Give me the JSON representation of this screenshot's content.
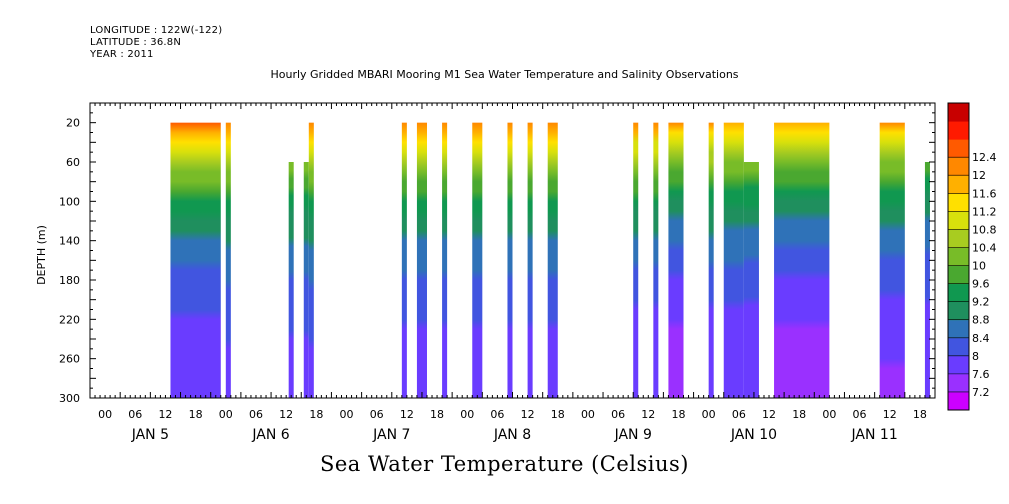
{
  "header": {
    "longitude": "LONGITUDE : 122W(-122)",
    "latitude": "LATITUDE : 36.8N",
    "year": "YEAR : 2011"
  },
  "chart_data": {
    "type": "heatmap",
    "title": "Hourly Gridded MBARI Mooring M1 Sea Water Temperature and Salinity Observations",
    "colorbar_title": "Sea Water Temperature (Celsius)",
    "ylabel": "DEPTH (m)",
    "ylim": [
      300,
      0
    ],
    "y_ticks": [
      20,
      60,
      100,
      140,
      180,
      220,
      260,
      300
    ],
    "x_range_hours": [
      0,
      168
    ],
    "x_hour_ticks": [
      "00",
      "06",
      "12",
      "18"
    ],
    "days": [
      "JAN  5",
      "JAN  6",
      "JAN  7",
      "JAN  8",
      "JAN  9",
      "JAN 10",
      "JAN 11"
    ],
    "colorbar_levels": [
      7.2,
      7.6,
      8,
      8.4,
      8.8,
      9.2,
      9.6,
      10,
      10.4,
      10.8,
      11.2,
      11.6,
      12,
      12.4
    ],
    "colorbar_labels": [
      "7.2",
      "7.6",
      "8",
      "8.4",
      "8.8",
      "9.2",
      "9.6",
      "10",
      "10.4",
      "10.8",
      "11.2",
      "11.6",
      "12",
      "12.4"
    ],
    "colors": [
      "#cc00ff",
      "#9a30ff",
      "#6a3cff",
      "#4155e0",
      "#2f72b8",
      "#1f8f5e",
      "#109850",
      "#4aa830",
      "#78bc28",
      "#a8cc20",
      "#d8e00c",
      "#ffe000",
      "#ffb000",
      "#ff8800",
      "#ff5a00",
      "#ff1a00",
      "#c80000"
    ],
    "data_segments": [
      {
        "start": 16,
        "end": 26,
        "top": 20,
        "bottom": 300,
        "surface": 12.4,
        "bottom_value": 7.6
      },
      {
        "start": 27,
        "end": 28,
        "top": 20,
        "bottom": 300,
        "surface": 12.2,
        "bottom_value": 7.8
      },
      {
        "start": 39.5,
        "end": 40.5,
        "top": 60,
        "bottom": 300,
        "surface": 11.8,
        "bottom_value": 7.8
      },
      {
        "start": 42.5,
        "end": 43.5,
        "top": 60,
        "bottom": 300,
        "surface": 11.8,
        "bottom_value": 7.8
      },
      {
        "start": 43.5,
        "end": 44.5,
        "top": 20,
        "bottom": 300,
        "surface": 12.2,
        "bottom_value": 7.8
      },
      {
        "start": 62,
        "end": 63,
        "top": 20,
        "bottom": 300,
        "surface": 12.1,
        "bottom_value": 7.7
      },
      {
        "start": 65,
        "end": 67,
        "top": 20,
        "bottom": 300,
        "surface": 12.1,
        "bottom_value": 7.7
      },
      {
        "start": 70,
        "end": 71,
        "top": 20,
        "bottom": 300,
        "surface": 12.1,
        "bottom_value": 7.7
      },
      {
        "start": 76,
        "end": 78,
        "top": 20,
        "bottom": 300,
        "surface": 12.1,
        "bottom_value": 7.7
      },
      {
        "start": 83,
        "end": 84,
        "top": 20,
        "bottom": 300,
        "surface": 12.1,
        "bottom_value": 7.7
      },
      {
        "start": 87,
        "end": 88,
        "top": 20,
        "bottom": 300,
        "surface": 12.1,
        "bottom_value": 7.7
      },
      {
        "start": 91,
        "end": 93,
        "top": 20,
        "bottom": 300,
        "surface": 12.1,
        "bottom_value": 7.7
      },
      {
        "start": 108,
        "end": 109,
        "top": 20,
        "bottom": 300,
        "surface": 12.1,
        "bottom_value": 7.6
      },
      {
        "start": 112,
        "end": 113,
        "top": 20,
        "bottom": 300,
        "surface": 12.1,
        "bottom_value": 7.6
      },
      {
        "start": 115,
        "end": 118,
        "top": 20,
        "bottom": 300,
        "surface": 12.0,
        "bottom_value": 7.3
      },
      {
        "start": 123,
        "end": 124,
        "top": 20,
        "bottom": 300,
        "surface": 12.0,
        "bottom_value": 7.6
      },
      {
        "start": 126,
        "end": 130,
        "top": 20,
        "bottom": 300,
        "surface": 11.9,
        "bottom_value": 7.6
      },
      {
        "start": 130,
        "end": 133,
        "top": 60,
        "bottom": 300,
        "surface": 11.8,
        "bottom_value": 7.6
      },
      {
        "start": 136,
        "end": 147,
        "top": 20,
        "bottom": 300,
        "surface": 11.9,
        "bottom_value": 7.3
      },
      {
        "start": 157,
        "end": 162,
        "top": 20,
        "bottom": 300,
        "surface": 12.0,
        "bottom_value": 7.5
      },
      {
        "start": 166,
        "end": 167,
        "top": 60,
        "bottom": 300,
        "surface": 11.3,
        "bottom_value": 7.6
      }
    ]
  }
}
